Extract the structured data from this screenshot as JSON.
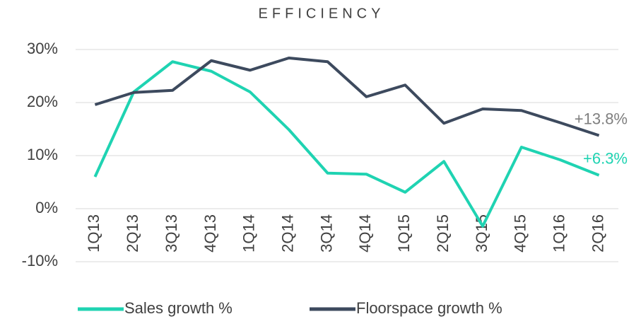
{
  "chart_data": {
    "type": "line",
    "title": "EFFICIENCY",
    "categories": [
      "1Q13",
      "2Q13",
      "3Q13",
      "4Q13",
      "1Q14",
      "2Q14",
      "3Q14",
      "4Q14",
      "1Q15",
      "2Q15",
      "3Q15",
      "4Q15",
      "1Q16",
      "2Q16"
    ],
    "series": [
      {
        "name": "Sales growth %",
        "color": "#1fd3b2",
        "values": [
          6.0,
          22.0,
          27.7,
          25.9,
          22.0,
          14.9,
          6.7,
          6.5,
          3.1,
          8.9,
          -3.3,
          11.6,
          9.2,
          6.3
        ]
      },
      {
        "name": "Floorspace growth %",
        "color": "#3d4a5e",
        "values": [
          19.6,
          21.9,
          22.3,
          27.9,
          26.1,
          28.4,
          27.7,
          21.1,
          23.3,
          16.1,
          18.8,
          18.5,
          16.2,
          13.8
        ]
      }
    ],
    "annotations": [
      {
        "text": "+13.8%",
        "series": 1
      },
      {
        "text": "+6.3%",
        "series": 0
      }
    ],
    "ylim": [
      -10,
      30
    ],
    "yticks": [
      {
        "value": -10,
        "label": "-10%"
      },
      {
        "value": 0,
        "label": "0%"
      },
      {
        "value": 10,
        "label": "10%"
      },
      {
        "value": 20,
        "label": "20%"
      },
      {
        "value": 30,
        "label": "30%"
      }
    ],
    "grid": true,
    "legend": "bottom"
  }
}
